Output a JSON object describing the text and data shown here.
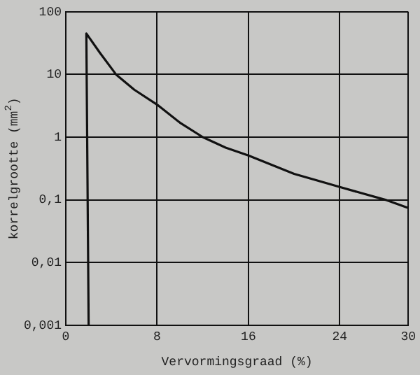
{
  "chart_data": {
    "type": "line",
    "xlabel": "Vervormingsgraad (%)",
    "ylabel": "korrelgrootte (mm$^{2}$)",
    "x": [
      2.0,
      1.8,
      3,
      4.4,
      6,
      8,
      10,
      12,
      14,
      16,
      20,
      24,
      28,
      30
    ],
    "series": [
      {
        "color": "#111111",
        "values": [
          0.001,
          45,
          22,
          10,
          5.7,
          3.3,
          1.7,
          1,
          0.68,
          0.51,
          0.26,
          0.16,
          0.1,
          0.074
        ]
      }
    ],
    "xlim": [
      0,
      30
    ],
    "xticks": [
      0,
      8,
      16,
      24,
      30
    ],
    "ylim": [
      0.001,
      100
    ],
    "yticks": [
      {
        "value": 0.001,
        "label": "0,001"
      },
      {
        "value": 0.01,
        "label": "0,01"
      },
      {
        "value": 0.1,
        "label": "0,1"
      },
      {
        "value": 1,
        "label": "1"
      },
      {
        "value": 10,
        "label": "10"
      },
      {
        "value": 100,
        "label": "100"
      }
    ],
    "log": "y",
    "grid": true,
    "legend": false,
    "marker": "none",
    "line_style": "solid"
  }
}
